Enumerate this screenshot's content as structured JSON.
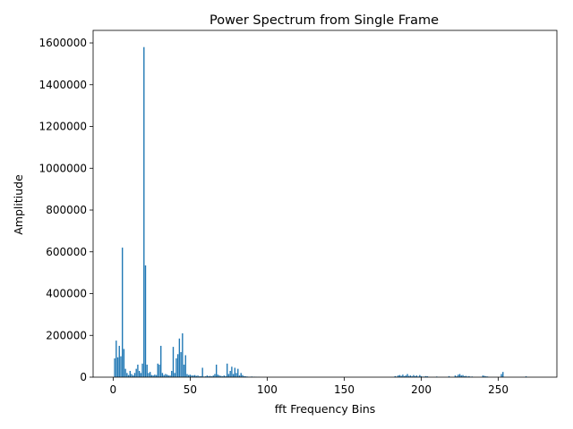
{
  "chart_data": {
    "type": "bar",
    "title": "Power Spectrum from Single Frame",
    "xlabel": "fft Frequency Bins",
    "ylabel": "Amplitiude",
    "xlim": [
      -13,
      288
    ],
    "ylim": [
      0,
      1660000
    ],
    "x_ticks": [
      0,
      50,
      100,
      150,
      200,
      250
    ],
    "y_ticks": [
      0,
      200000,
      400000,
      600000,
      800000,
      1000000,
      1200000,
      1400000,
      1600000
    ],
    "bar_color": "#1f77b4",
    "grid": false,
    "legend": "none",
    "x": [
      1,
      2,
      3,
      4,
      5,
      6,
      7,
      8,
      9,
      10,
      11,
      12,
      13,
      14,
      15,
      16,
      17,
      18,
      19,
      20,
      21,
      22,
      23,
      24,
      25,
      26,
      27,
      28,
      29,
      30,
      31,
      32,
      33,
      34,
      35,
      36,
      37,
      38,
      39,
      40,
      41,
      42,
      43,
      44,
      45,
      46,
      47,
      48,
      49,
      50,
      51,
      52,
      53,
      54,
      55,
      56,
      57,
      58,
      59,
      60,
      61,
      62,
      63,
      64,
      65,
      66,
      67,
      68,
      69,
      70,
      71,
      72,
      73,
      74,
      75,
      76,
      77,
      78,
      79,
      80,
      81,
      82,
      83,
      84,
      85,
      86,
      87,
      88,
      89,
      90,
      91,
      92,
      93,
      94,
      95,
      183,
      184,
      185,
      186,
      187,
      188,
      189,
      190,
      191,
      192,
      193,
      194,
      195,
      196,
      197,
      198,
      199,
      200,
      201,
      202,
      203,
      204,
      210,
      218,
      222,
      223,
      224,
      225,
      226,
      227,
      228,
      229,
      230,
      231,
      232,
      233,
      240,
      241,
      242,
      243,
      252,
      253,
      268
    ],
    "values": [
      90000,
      175000,
      95000,
      150000,
      100000,
      620000,
      135000,
      40000,
      20000,
      10000,
      30000,
      15000,
      8000,
      20000,
      40000,
      60000,
      30000,
      20000,
      65000,
      1580000,
      535000,
      60000,
      20000,
      25000,
      10000,
      8000,
      12000,
      10000,
      65000,
      60000,
      150000,
      20000,
      10000,
      15000,
      12000,
      8000,
      8000,
      30000,
      145000,
      20000,
      90000,
      110000,
      185000,
      120000,
      210000,
      60000,
      105000,
      15000,
      10000,
      12000,
      8000,
      8000,
      10000,
      6000,
      8000,
      4000,
      5000,
      45000,
      3000,
      4000,
      8000,
      5000,
      6000,
      4000,
      8000,
      15000,
      60000,
      12000,
      8000,
      6000,
      4000,
      8000,
      5000,
      65000,
      15000,
      30000,
      50000,
      15000,
      45000,
      20000,
      40000,
      8000,
      20000,
      10000,
      5000,
      4000,
      3000,
      2000,
      2000,
      3000,
      2000,
      2000,
      1000,
      1000,
      1000,
      5000,
      3000,
      8000,
      10000,
      6000,
      12000,
      5000,
      8000,
      15000,
      6000,
      8000,
      4000,
      10000,
      5000,
      8000,
      3000,
      10000,
      5000,
      2000,
      3000,
      5000,
      4000,
      3000,
      5000,
      8000,
      4000,
      12000,
      15000,
      8000,
      10000,
      5000,
      6000,
      3000,
      5000,
      2000,
      3000,
      8000,
      6000,
      4000,
      3000,
      15000,
      25000,
      4000
    ]
  }
}
